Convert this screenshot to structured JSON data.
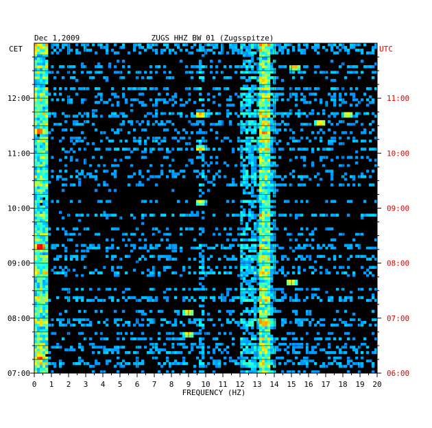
{
  "chart_data": {
    "type": "heatmap",
    "date": "Dec 1,2009",
    "title": "ZUGS HHZ BW 01 (Zugsspitze)",
    "xlabel": "FREQUENCY (HZ)",
    "x_ticks": [
      0,
      1,
      2,
      3,
      4,
      5,
      6,
      7,
      8,
      9,
      10,
      11,
      12,
      13,
      14,
      15,
      16,
      17,
      18,
      19,
      20
    ],
    "xlim": [
      0,
      20
    ],
    "left_axis": {
      "name": "CET",
      "ticks": [
        "07:00",
        "08:00",
        "09:00",
        "10:00",
        "11:00",
        "12:00"
      ],
      "range_hours": [
        7.0,
        13.0
      ]
    },
    "right_axis": {
      "name": "UTC",
      "ticks": [
        "06:00",
        "07:00",
        "08:00",
        "09:00",
        "10:00",
        "11:00"
      ],
      "color": "#dd0000"
    },
    "colormap": [
      "#00008f",
      "#0000ff",
      "#0080ff",
      "#00ffff",
      "#80ff80",
      "#ffff00",
      "#ff8000",
      "#ff0000"
    ],
    "grid": true,
    "energy_bands": [
      {
        "hz_from": 0.0,
        "hz_to": 0.8,
        "level": 0.6
      },
      {
        "hz_from": 9.6,
        "hz_to": 9.9,
        "level": 0.35
      },
      {
        "hz_from": 12.0,
        "hz_to": 14.0,
        "level": 0.4
      },
      {
        "hz_from": 13.1,
        "hz_to": 13.8,
        "level": 0.65
      },
      {
        "hz_from": 14.0,
        "hz_to": 16.0,
        "level": 0.25
      }
    ],
    "hotspots": [
      {
        "hz": 0.35,
        "cet": 9.3,
        "level": 1.0
      },
      {
        "hz": 0.35,
        "cet": 7.3,
        "level": 0.95
      },
      {
        "hz": 0.3,
        "cet": 11.4,
        "level": 0.9
      },
      {
        "hz": 13.4,
        "cet": 11.35,
        "level": 0.9
      },
      {
        "hz": 13.4,
        "cet": 12.3,
        "level": 0.85
      },
      {
        "hz": 15.0,
        "cet": 8.65,
        "level": 0.85
      },
      {
        "hz": 15.2,
        "cet": 12.55,
        "level": 0.75
      },
      {
        "hz": 9.7,
        "cet": 10.1,
        "level": 0.7
      },
      {
        "hz": 9.7,
        "cet": 11.1,
        "level": 0.7
      },
      {
        "hz": 9.7,
        "cet": 11.7,
        "level": 0.7
      },
      {
        "hz": 9.0,
        "cet": 7.7,
        "level": 0.75
      },
      {
        "hz": 9.0,
        "cet": 8.1,
        "level": 0.7
      },
      {
        "hz": 16.7,
        "cet": 11.55,
        "level": 0.7
      },
      {
        "hz": 18.3,
        "cet": 11.7,
        "level": 0.6
      }
    ]
  }
}
